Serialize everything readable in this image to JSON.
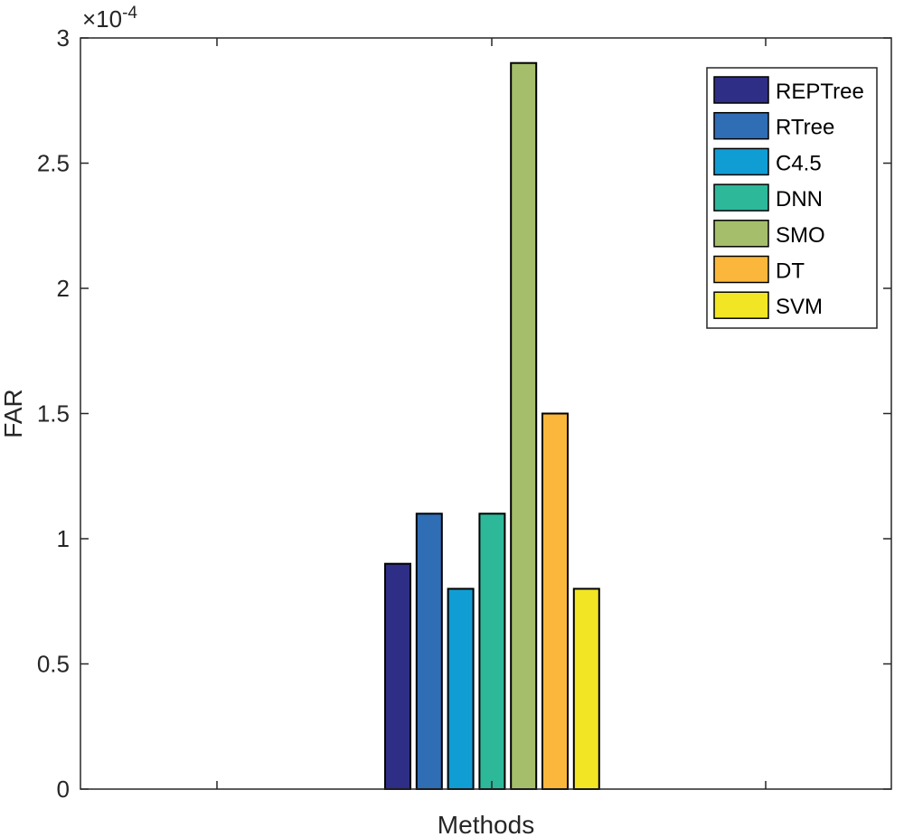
{
  "chart_data": {
    "type": "bar",
    "title": "",
    "xlabel": "Methods",
    "ylabel": "FAR",
    "y_exponent_label": "×10",
    "y_exponent_power": "-4",
    "ylim": [
      0,
      3
    ],
    "yticks": [
      "0",
      "0.5",
      "1",
      "1.5",
      "2",
      "2.5",
      "3"
    ],
    "ytick_values": [
      0,
      0.5,
      1,
      1.5,
      2,
      2.5,
      3
    ],
    "grid": false,
    "legend_position": "top-right",
    "series": [
      {
        "name": "REPTree",
        "value": 0.9,
        "color": "#2e2e86"
      },
      {
        "name": "RTree",
        "value": 1.1,
        "color": "#2f6db5"
      },
      {
        "name": "C4.5",
        "value": 0.8,
        "color": "#109dd4"
      },
      {
        "name": "DNN",
        "value": 1.1,
        "color": "#2db89a"
      },
      {
        "name": "SMO",
        "value": 2.9,
        "color": "#a4be6b"
      },
      {
        "name": "DT",
        "value": 1.5,
        "color": "#fbb73c"
      },
      {
        "name": "SVM",
        "value": 0.8,
        "color": "#f2e523"
      }
    ]
  }
}
